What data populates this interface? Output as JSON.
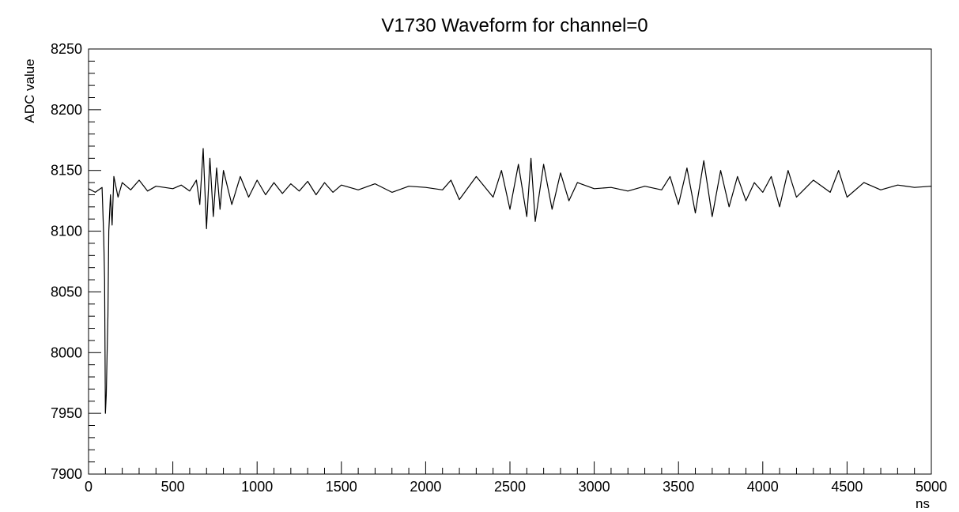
{
  "chart_data": {
    "type": "line",
    "title": "V1730 Waveform for channel=0",
    "xlabel": "ns",
    "ylabel": "ADC value",
    "xlim": [
      0,
      5000
    ],
    "ylim": [
      7900,
      8250
    ],
    "x_ticks": [
      "0",
      "500",
      "1000",
      "1500",
      "2000",
      "2500",
      "3000",
      "3500",
      "4000",
      "4500",
      "5000"
    ],
    "y_ticks": [
      "7900",
      "7950",
      "8000",
      "8050",
      "8100",
      "8150",
      "8200",
      "8250"
    ],
    "grid": false,
    "legend": "none",
    "series": [
      {
        "line_color": "#000000",
        "x": [
          0,
          40,
          80,
          90,
          95,
          100,
          105,
          110,
          115,
          120,
          130,
          140,
          150,
          175,
          200,
          250,
          300,
          350,
          400,
          450,
          500,
          550,
          600,
          640,
          660,
          680,
          700,
          720,
          740,
          760,
          780,
          800,
          850,
          900,
          950,
          1000,
          1050,
          1100,
          1150,
          1200,
          1250,
          1300,
          1350,
          1400,
          1450,
          1500,
          1600,
          1700,
          1800,
          1900,
          2000,
          2100,
          2150,
          2200,
          2300,
          2400,
          2450,
          2500,
          2550,
          2600,
          2625,
          2650,
          2700,
          2750,
          2800,
          2850,
          2900,
          3000,
          3100,
          3200,
          3300,
          3400,
          3450,
          3500,
          3550,
          3600,
          3650,
          3700,
          3750,
          3800,
          3850,
          3900,
          3950,
          4000,
          4050,
          4100,
          4150,
          4200,
          4300,
          4400,
          4450,
          4500,
          4600,
          4700,
          4800,
          4900,
          5000
        ],
        "y": [
          8135,
          8132,
          8136,
          8095,
          8060,
          7950,
          7965,
          8000,
          8030,
          8100,
          8130,
          8105,
          8145,
          8128,
          8140,
          8134,
          8142,
          8133,
          8137,
          8136,
          8135,
          8138,
          8133,
          8142,
          8122,
          8168,
          8102,
          8160,
          8112,
          8152,
          8118,
          8150,
          8122,
          8145,
          8128,
          8142,
          8130,
          8140,
          8131,
          8139,
          8133,
          8141,
          8130,
          8140,
          8132,
          8138,
          8134,
          8139,
          8132,
          8137,
          8136,
          8134,
          8142,
          8126,
          8145,
          8128,
          8150,
          8118,
          8155,
          8112,
          8160,
          8108,
          8155,
          8118,
          8148,
          8125,
          8140,
          8135,
          8136,
          8133,
          8137,
          8134,
          8145,
          8122,
          8152,
          8115,
          8158,
          8112,
          8150,
          8120,
          8145,
          8125,
          8140,
          8132,
          8145,
          8120,
          8150,
          8128,
          8142,
          8132,
          8150,
          8128,
          8140,
          8134,
          8138,
          8136,
          8137
        ]
      }
    ]
  }
}
